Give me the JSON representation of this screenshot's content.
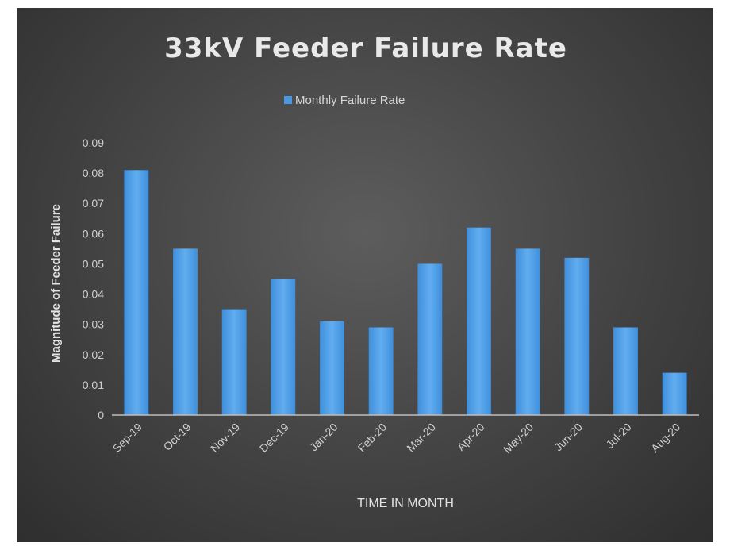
{
  "chart_data": {
    "type": "bar",
    "title": "33kV Feeder Failure Rate",
    "xlabel": "TIME IN MONTH",
    "ylabel": "Magnitude of Feeder Failure",
    "categories": [
      "Sep-19",
      "Oct-19",
      "Nov-19",
      "Dec-19",
      "Jan-20",
      "Feb-20",
      "Mar-20",
      "Apr-20",
      "May-20",
      "Jun-20",
      "Jul-20",
      "Aug-20"
    ],
    "series": [
      {
        "name": "Monthly Failure Rate",
        "color": "#4a98e0",
        "values": [
          0.081,
          0.055,
          0.035,
          0.045,
          0.031,
          0.029,
          0.05,
          0.062,
          0.055,
          0.052,
          0.029,
          0.014
        ]
      }
    ],
    "yticks": [
      "0",
      "0.01",
      "0.02",
      "0.03",
      "0.04",
      "0.05",
      "0.06",
      "0.07",
      "0.08",
      "0.09"
    ],
    "ylim": [
      0,
      0.09
    ],
    "grid": false,
    "legend_position": "top-center"
  }
}
